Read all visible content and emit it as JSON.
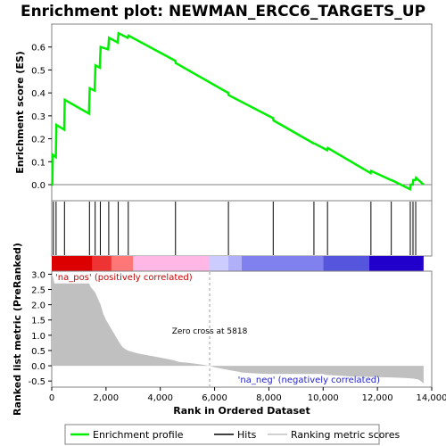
{
  "chart_data": {
    "type": "line",
    "title": "Enrichment plot: NEWMAN_ERCC6_TARGETS_UP",
    "enrichment_panel": {
      "ylabel": "Enrichment score (ES)",
      "ylim": [
        -0.07,
        0.7
      ],
      "yticks": [
        "0.0",
        "0.1",
        "0.2",
        "0.3",
        "0.4",
        "0.5",
        "0.6"
      ],
      "series": {
        "name": "Enrichment profile",
        "color": "#00ee00",
        "x": [
          0,
          20,
          40,
          150,
          170,
          460,
          480,
          1370,
          1400,
          1580,
          1610,
          1770,
          1800,
          2080,
          2110,
          2430,
          2460,
          2800,
          2830,
          4550,
          4570,
          6500,
          6520,
          8150,
          8170,
          9650,
          9670,
          10150,
          10170,
          11750,
          11770,
          12500,
          12520,
          13200,
          13220,
          13300,
          13320,
          13400,
          13420,
          13700
        ],
        "y": [
          0.0,
          0.0,
          0.13,
          0.12,
          0.26,
          0.24,
          0.37,
          0.31,
          0.42,
          0.41,
          0.52,
          0.51,
          0.6,
          0.59,
          0.64,
          0.62,
          0.66,
          0.64,
          0.65,
          0.54,
          0.53,
          0.4,
          0.39,
          0.29,
          0.28,
          0.18,
          0.18,
          0.15,
          0.16,
          0.05,
          0.06,
          0.02,
          0.02,
          -0.02,
          0.0,
          0.0,
          0.02,
          0.02,
          0.03,
          0.0
        ]
      }
    },
    "hits_panel": {
      "name": "Hits",
      "positions": [
        60,
        160,
        470,
        1390,
        1600,
        1790,
        2100,
        2450,
        2820,
        4560,
        6510,
        8160,
        9660,
        10160,
        11760,
        12510,
        13210,
        13310,
        13410
      ]
    },
    "metric_panel": {
      "ylabel": "Ranked list metric (PreRanked)",
      "xlabel": "Rank in Ordered Dataset",
      "ylim": [
        -0.7,
        3.1
      ],
      "yticks": [
        "-0.5",
        "0.0",
        "0.5",
        "1.0",
        "1.5",
        "2.0",
        "2.5",
        "3.0"
      ],
      "xlim": [
        0,
        14000
      ],
      "xticks": [
        "0",
        "2,000",
        "4,000",
        "6,000",
        "8,000",
        "10,000",
        "12,000",
        "14,000"
      ],
      "series": {
        "name": "Ranking metric scores",
        "color": "#c0c0c0",
        "x": [
          0,
          50,
          100,
          1380,
          1420,
          1600,
          1700,
          1800,
          1900,
          2000,
          2100,
          2200,
          2300,
          2400,
          2500,
          2600,
          2700,
          2800,
          2900,
          3000,
          3200,
          3500,
          3800,
          4100,
          4400,
          4600,
          4700,
          5000,
          5300,
          5600,
          5818,
          6000,
          6300,
          6600,
          6900,
          7000,
          7500,
          8000,
          9000,
          10000,
          10100,
          10500,
          11000,
          11500,
          12000,
          12500,
          13000,
          13300,
          13500,
          13600,
          13700
        ],
        "y": [
          3.0,
          2.9,
          2.7,
          2.7,
          2.6,
          2.4,
          2.2,
          2.0,
          1.7,
          1.5,
          1.35,
          1.2,
          1.05,
          0.9,
          0.75,
          0.62,
          0.55,
          0.5,
          0.47,
          0.45,
          0.4,
          0.35,
          0.3,
          0.25,
          0.2,
          0.15,
          0.12,
          0.1,
          0.07,
          0.03,
          0.0,
          -0.05,
          -0.1,
          -0.15,
          -0.2,
          -0.22,
          -0.25,
          -0.27,
          -0.27,
          -0.27,
          -0.3,
          -0.32,
          -0.35,
          -0.36,
          -0.37,
          -0.38,
          -0.4,
          -0.42,
          -0.45,
          -0.5,
          -0.58
        ]
      },
      "zero_cross_label": "Zero cross at 5818",
      "zero_cross": 5818,
      "pos_label": "'na_pos' (positively correlated)",
      "neg_label": "'na_neg' (negatively correlated)"
    },
    "heatmap_band": {
      "segments": [
        {
          "from": 0,
          "to": 1500,
          "color": "#dd0000"
        },
        {
          "from": 1500,
          "to": 2200,
          "color": "#ee3333"
        },
        {
          "from": 2200,
          "to": 3000,
          "color": "#ff7777"
        },
        {
          "from": 3000,
          "to": 5800,
          "color": "#ffb8e6"
        },
        {
          "from": 5800,
          "to": 6500,
          "color": "#ccccff"
        },
        {
          "from": 6500,
          "to": 7000,
          "color": "#b0b0f8"
        },
        {
          "from": 7000,
          "to": 10000,
          "color": "#8080ee"
        },
        {
          "from": 10000,
          "to": 11700,
          "color": "#5555dd"
        },
        {
          "from": 11700,
          "to": 13700,
          "color": "#2200cc"
        }
      ]
    },
    "legend": {
      "position": "bottom",
      "items": [
        {
          "label": "Enrichment profile",
          "color": "#00ee00"
        },
        {
          "label": "Hits",
          "color": "#000000"
        },
        {
          "label": "Ranking metric scores",
          "color": "#c0c0c0"
        }
      ]
    }
  }
}
